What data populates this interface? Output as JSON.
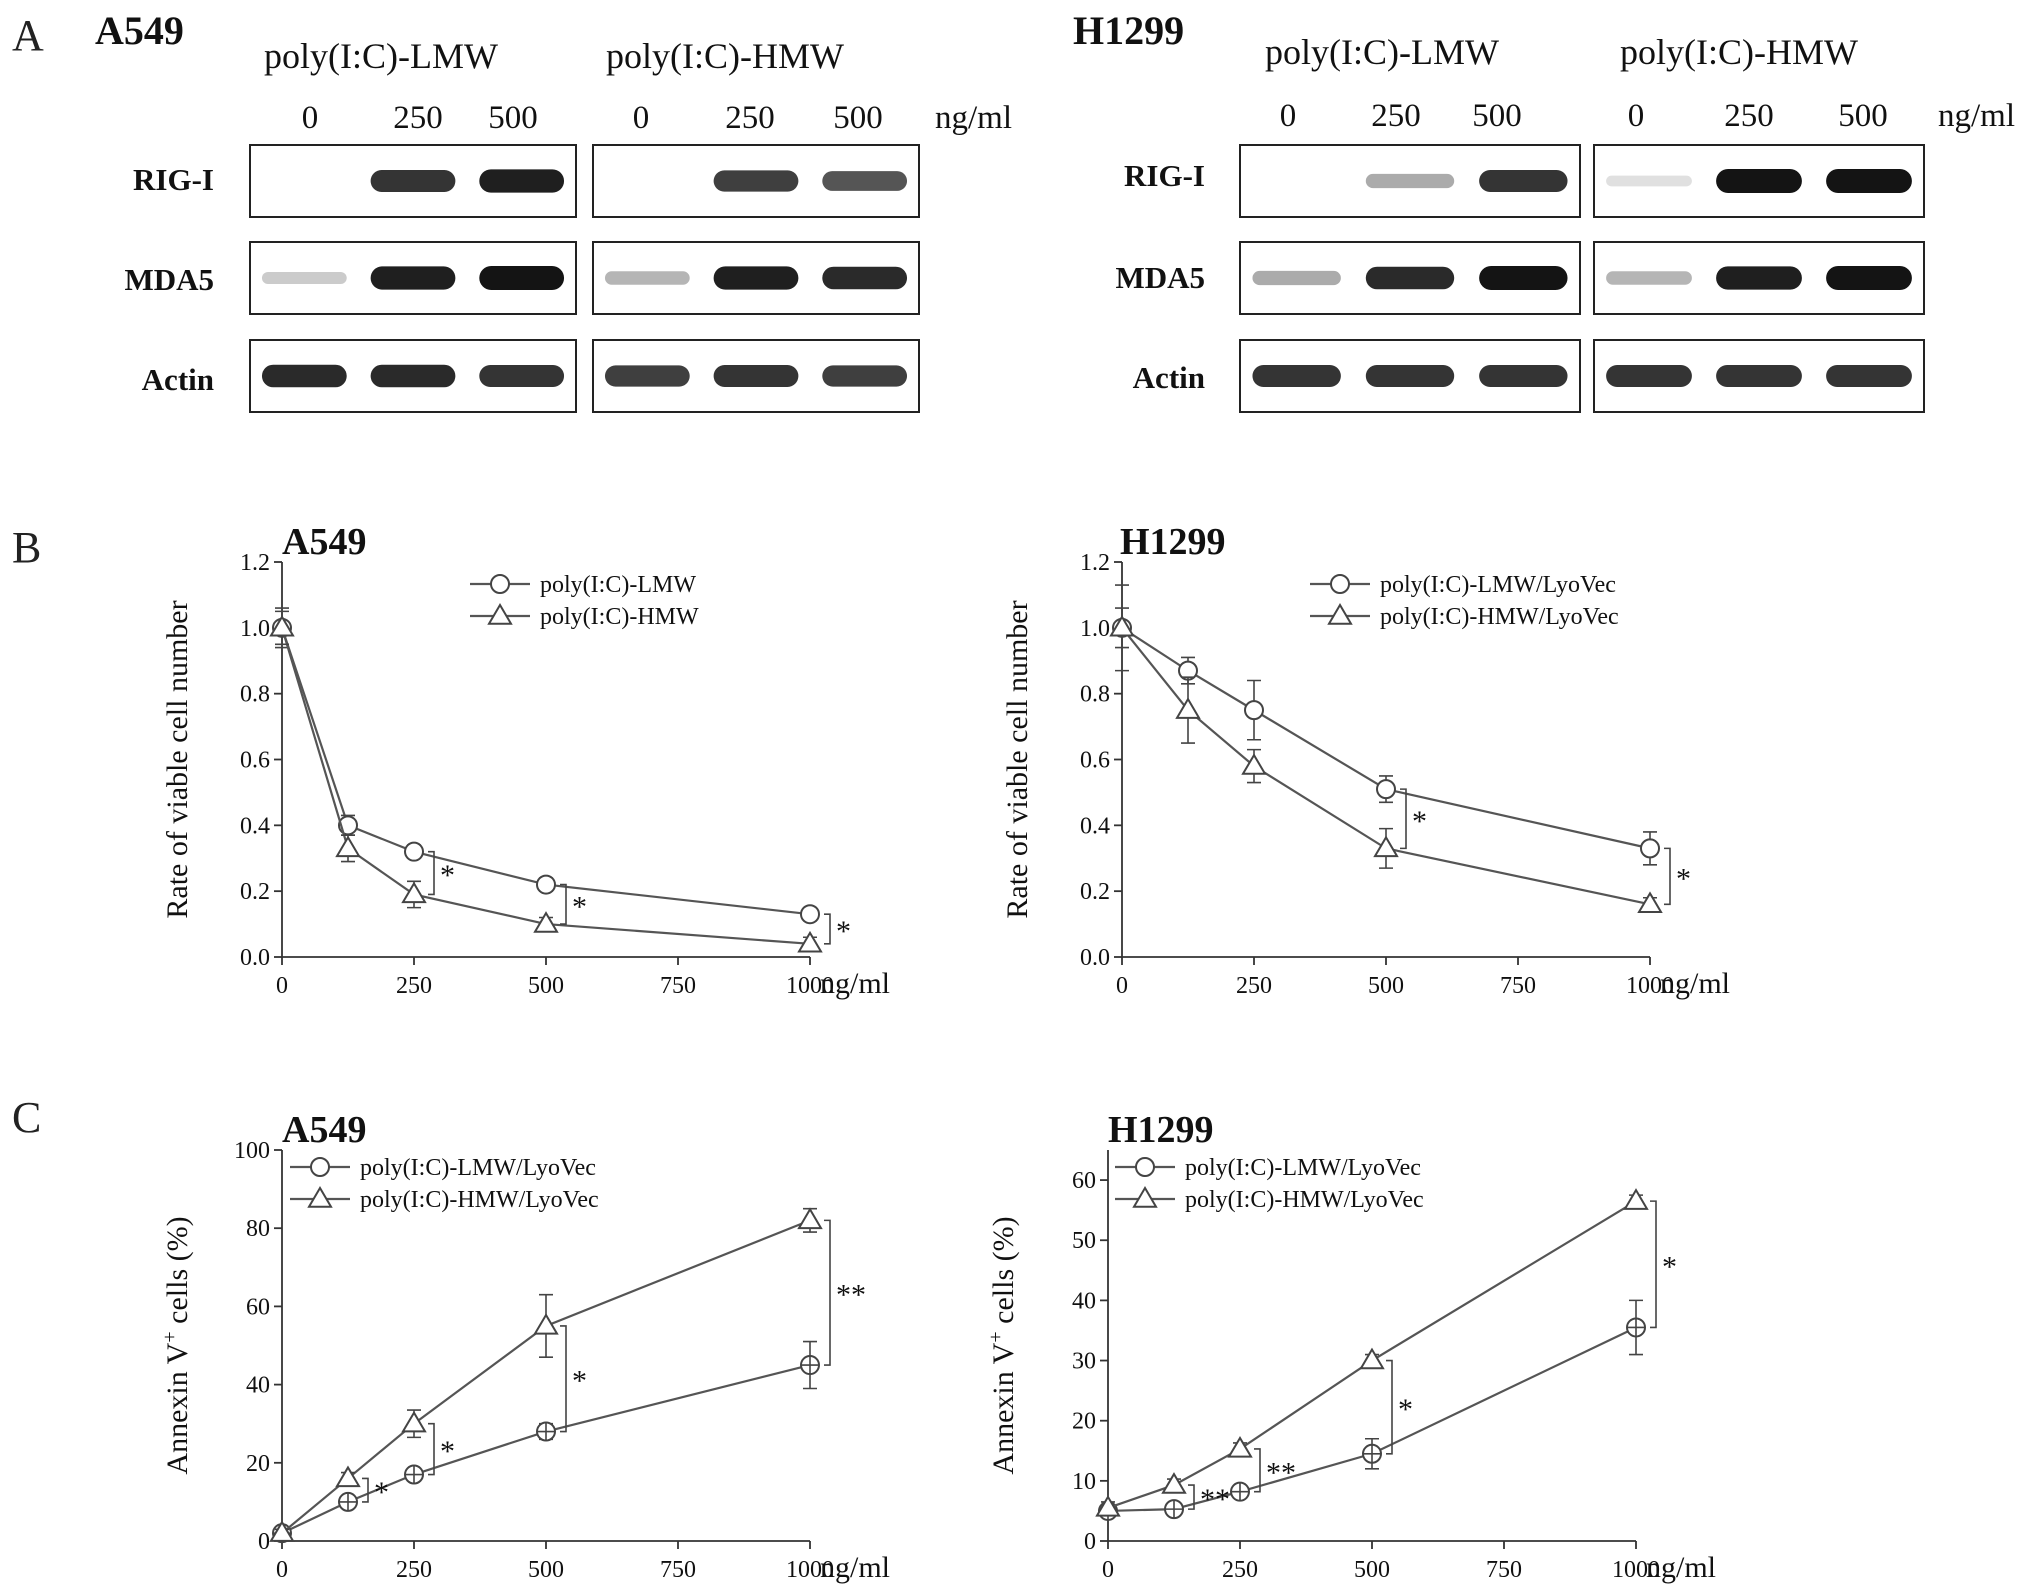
{
  "panels": {
    "A": {
      "letter": "A",
      "ng_unit": "ng/ml",
      "blots": [
        {
          "cell_line": "A549",
          "groups": [
            {
              "condition": "poly(I:C)-LMW",
              "lanes": [
                "0",
                "250",
                "500"
              ]
            },
            {
              "condition": "poly(I:C)-HMW",
              "lanes": [
                "0",
                "250",
                "500"
              ]
            }
          ],
          "proteins": [
            "RIG-I",
            "MDA5",
            "Actin"
          ],
          "band_intensity": [
            [
              [
                0.0,
                0.85,
                0.95
              ],
              [
                0.0,
                0.8,
                0.7
              ]
            ],
            [
              [
                0.15,
                0.95,
                1.0
              ],
              [
                0.25,
                0.95,
                0.9
              ]
            ],
            [
              [
                0.9,
                0.9,
                0.85
              ],
              [
                0.8,
                0.85,
                0.8
              ]
            ]
          ]
        },
        {
          "cell_line": "H1299",
          "groups": [
            {
              "condition": "poly(I:C)-LMW",
              "lanes": [
                "0",
                "250",
                "500"
              ]
            },
            {
              "condition": "poly(I:C)-HMW",
              "lanes": [
                "0",
                "250",
                "500"
              ]
            }
          ],
          "proteins": [
            "RIG-I",
            "MDA5",
            "Actin"
          ],
          "band_intensity": [
            [
              [
                0.0,
                0.3,
                0.85
              ],
              [
                0.05,
                1.0,
                1.0
              ]
            ],
            [
              [
                0.3,
                0.9,
                1.0
              ],
              [
                0.25,
                0.95,
                1.0
              ]
            ],
            [
              [
                0.85,
                0.85,
                0.85
              ],
              [
                0.85,
                0.85,
                0.85
              ]
            ]
          ]
        }
      ]
    },
    "B": {
      "letter": "B"
    },
    "C": {
      "letter": "C"
    }
  },
  "chart_data": [
    {
      "panel": "B",
      "type": "line",
      "title": "A549",
      "xlabel": "ng/ml",
      "ylabel": "Rate of viable cell number",
      "xlim": [
        0,
        1000
      ],
      "ylim": [
        0,
        1.2
      ],
      "xticks": [
        0,
        250,
        500,
        750,
        1000
      ],
      "yticks": [
        0.0,
        0.2,
        0.4,
        0.6,
        0.8,
        1.0,
        1.2
      ],
      "ytick_decimals": 1,
      "legend_position": "top-right",
      "series": [
        {
          "name": "poly(I:C)-LMW",
          "marker": "circle",
          "x": [
            0,
            125,
            250,
            500,
            1000
          ],
          "y": [
            1.0,
            0.4,
            0.32,
            0.22,
            0.13
          ],
          "err": [
            0.06,
            0.03,
            0.02,
            0.02,
            0.02
          ]
        },
        {
          "name": "poly(I:C)-HMW",
          "marker": "triangle",
          "x": [
            0,
            125,
            250,
            500,
            1000
          ],
          "y": [
            1.0,
            0.33,
            0.19,
            0.1,
            0.04
          ],
          "err": [
            0.05,
            0.04,
            0.04,
            0.02,
            0.02
          ]
        }
      ],
      "significance": [
        {
          "x": 250,
          "label": "*"
        },
        {
          "x": 500,
          "label": "*"
        },
        {
          "x": 1000,
          "label": "*"
        }
      ]
    },
    {
      "panel": "B",
      "type": "line",
      "title": "H1299",
      "xlabel": "ng/ml",
      "ylabel": "Rate of viable cell number",
      "xlim": [
        0,
        1000
      ],
      "ylim": [
        0,
        1.2
      ],
      "xticks": [
        0,
        250,
        500,
        750,
        1000
      ],
      "yticks": [
        0.0,
        0.2,
        0.4,
        0.6,
        0.8,
        1.0,
        1.2
      ],
      "ytick_decimals": 1,
      "legend_position": "top-right",
      "series": [
        {
          "name": "poly(I:C)-LMW/LyoVec",
          "marker": "circle",
          "x": [
            0,
            125,
            250,
            500,
            1000
          ],
          "y": [
            1.0,
            0.87,
            0.75,
            0.51,
            0.33
          ],
          "err": [
            0.13,
            0.04,
            0.09,
            0.04,
            0.05
          ]
        },
        {
          "name": "poly(I:C)-HMW/LyoVec",
          "marker": "triangle",
          "x": [
            0,
            125,
            250,
            500,
            1000
          ],
          "y": [
            1.0,
            0.75,
            0.58,
            0.33,
            0.16
          ],
          "err": [
            0.06,
            0.1,
            0.05,
            0.06,
            0.02
          ]
        }
      ],
      "significance": [
        {
          "x": 500,
          "label": "*"
        },
        {
          "x": 1000,
          "label": "*"
        }
      ]
    },
    {
      "panel": "C",
      "type": "line",
      "title": "A549",
      "xlabel": "ng/ml",
      "ylabel": "Annexin V+ cells (%)",
      "ylabel_main": "Annexin V",
      "ylabel_sup": "+",
      "ylabel_tail": " cells (%)",
      "xlim": [
        0,
        1000
      ],
      "ylim": [
        0,
        100
      ],
      "xticks": [
        0,
        250,
        500,
        750,
        1000
      ],
      "yticks": [
        0,
        20,
        40,
        60,
        80,
        100
      ],
      "ytick_decimals": 0,
      "legend_position": "top-left",
      "series": [
        {
          "name": "poly(I:C)-LMW/LyoVec",
          "marker": "circle-plus",
          "x": [
            0,
            125,
            250,
            500,
            1000
          ],
          "y": [
            2,
            10,
            17,
            28,
            45
          ],
          "err": [
            1,
            1.5,
            1.5,
            2,
            6
          ]
        },
        {
          "name": "poly(I:C)-HMW/LyoVec",
          "marker": "triangle",
          "x": [
            0,
            125,
            250,
            500,
            1000
          ],
          "y": [
            2,
            16,
            30,
            55,
            82
          ],
          "err": [
            1,
            1.5,
            3.5,
            8,
            3
          ]
        }
      ],
      "significance": [
        {
          "x": 125,
          "label": "*"
        },
        {
          "x": 250,
          "label": "*"
        },
        {
          "x": 500,
          "label": "*"
        },
        {
          "x": 1000,
          "label": "**"
        }
      ]
    },
    {
      "panel": "C",
      "type": "line",
      "title": "H1299",
      "xlabel": "ng/ml",
      "ylabel": "Annexin V+ cells (%)",
      "ylabel_main": "Annexin V",
      "ylabel_sup": "+",
      "ylabel_tail": " cells (%)",
      "xlim": [
        0,
        1000
      ],
      "ylim": [
        0,
        65
      ],
      "xticks": [
        0,
        250,
        500,
        750,
        1000
      ],
      "yticks": [
        0,
        10,
        20,
        30,
        40,
        50,
        60
      ],
      "ytick_decimals": 0,
      "legend_position": "top-left",
      "series": [
        {
          "name": "poly(I:C)-LMW/LyoVec",
          "marker": "circle-plus",
          "x": [
            0,
            125,
            250,
            500,
            1000
          ],
          "y": [
            5,
            5.3,
            8.2,
            14.5,
            35.5
          ],
          "err": [
            1,
            1,
            0.8,
            2.5,
            4.5
          ]
        },
        {
          "name": "poly(I:C)-HMW/LyoVec",
          "marker": "triangle",
          "x": [
            0,
            125,
            250,
            500,
            1000
          ],
          "y": [
            5.5,
            9.3,
            15.3,
            30,
            56.5
          ],
          "err": [
            1,
            1,
            1,
            1,
            1
          ]
        }
      ],
      "significance": [
        {
          "x": 125,
          "label": "**"
        },
        {
          "x": 250,
          "label": "**"
        },
        {
          "x": 500,
          "label": "*"
        },
        {
          "x": 1000,
          "label": "*"
        }
      ]
    }
  ]
}
